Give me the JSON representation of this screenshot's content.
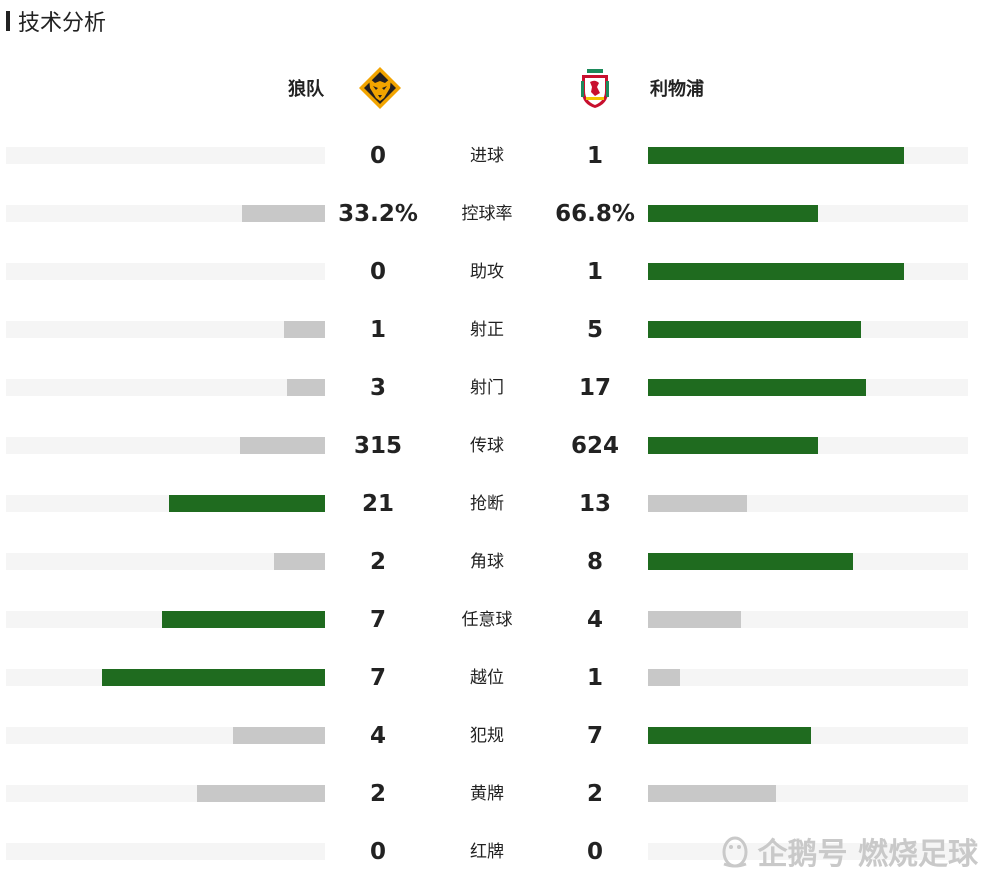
{
  "section_title": "技术分析",
  "home_team": "狼队",
  "away_team": "利物浦",
  "colors": {
    "win": "#1f6b1f",
    "lose": "#c8c8c8",
    "track": "#f5f5f5"
  },
  "stats": [
    {
      "label": "进球",
      "home": "0",
      "away": "1",
      "home_frac": 0.0,
      "away_frac": 0.8,
      "home_win": false,
      "away_win": true
    },
    {
      "label": "控球率",
      "home": "33.2%",
      "away": "66.8%",
      "home_frac": 0.26,
      "away_frac": 0.53,
      "home_win": false,
      "away_win": true
    },
    {
      "label": "助攻",
      "home": "0",
      "away": "1",
      "home_frac": 0.0,
      "away_frac": 0.8,
      "home_win": false,
      "away_win": true
    },
    {
      "label": "射正",
      "home": "1",
      "away": "5",
      "home_frac": 0.13,
      "away_frac": 0.665,
      "home_win": false,
      "away_win": true
    },
    {
      "label": "射门",
      "home": "3",
      "away": "17",
      "home_frac": 0.12,
      "away_frac": 0.68,
      "home_win": false,
      "away_win": true
    },
    {
      "label": "传球",
      "home": "315",
      "away": "624",
      "home_frac": 0.265,
      "away_frac": 0.53,
      "home_win": false,
      "away_win": true
    },
    {
      "label": "抢断",
      "home": "21",
      "away": "13",
      "home_frac": 0.49,
      "away_frac": 0.31,
      "home_win": true,
      "away_win": false
    },
    {
      "label": "角球",
      "home": "2",
      "away": "8",
      "home_frac": 0.16,
      "away_frac": 0.64,
      "home_win": false,
      "away_win": true
    },
    {
      "label": "任意球",
      "home": "7",
      "away": "4",
      "home_frac": 0.51,
      "away_frac": 0.29,
      "home_win": true,
      "away_win": false
    },
    {
      "label": "越位",
      "home": "7",
      "away": "1",
      "home_frac": 0.7,
      "away_frac": 0.1,
      "home_win": true,
      "away_win": false
    },
    {
      "label": "犯规",
      "home": "4",
      "away": "7",
      "home_frac": 0.29,
      "away_frac": 0.51,
      "home_win": false,
      "away_win": true
    },
    {
      "label": "黄牌",
      "home": "2",
      "away": "2",
      "home_frac": 0.4,
      "away_frac": 0.4,
      "home_win": false,
      "away_win": false
    },
    {
      "label": "红牌",
      "home": "0",
      "away": "0",
      "home_frac": 0.0,
      "away_frac": 0.0,
      "home_win": false,
      "away_win": false
    }
  ],
  "watermark": "企鹅号 燃烧足球",
  "icons": {
    "home_logo": "wolf-head-icon",
    "away_logo": "liver-bird-crest-icon",
    "watermark_logo": "penguin-icon"
  }
}
